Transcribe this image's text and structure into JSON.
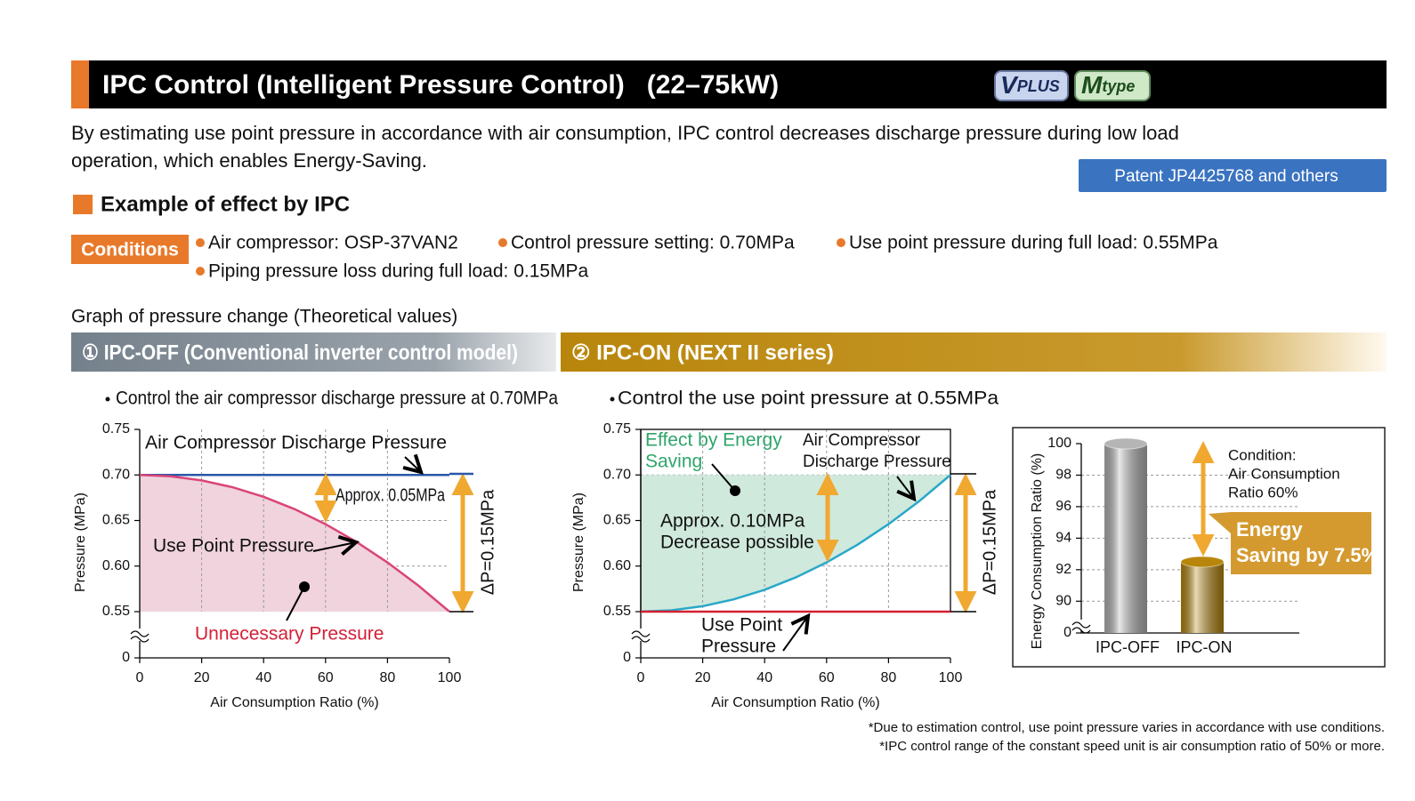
{
  "header": {
    "title": "IPC Control (Intelligent Pressure Control)   (22–75kW)",
    "badges": [
      {
        "main": "V",
        "sub": "PLUS"
      },
      {
        "main": "M",
        "sub": "type"
      }
    ]
  },
  "intro": [
    "By estimating use point pressure in accordance with air consumption, IPC control decreases discharge pressure during low load",
    "operation, which enables Energy-Saving."
  ],
  "patent": "Patent JP4425768 and others",
  "section_title": "Example of effect by IPC",
  "conditions": {
    "label": "Conditions",
    "items": [
      "Air compressor: OSP-37VAN2",
      "Control pressure setting: 0.70MPa",
      "Use point pressure during full load: 0.55MPa",
      "Piping pressure loss during full load: 0.15MPa"
    ]
  },
  "graph_caption": "Graph of pressure change (Theoretical values)",
  "panels": [
    {
      "title": "① IPC-OFF (Conventional inverter control model)",
      "note": "Control the air compressor discharge pressure at 0.70MPa"
    },
    {
      "title": "② IPC-ON (NEXT II series)",
      "note": "Control the use point pressure at 0.55MPa"
    }
  ],
  "chart_data": [
    {
      "type": "line",
      "x": [
        0,
        10,
        20,
        30,
        40,
        50,
        60,
        70,
        80,
        90,
        100
      ],
      "xlim": [
        0,
        100
      ],
      "xticks": [
        0,
        20,
        40,
        60,
        80,
        100
      ],
      "ylim": [
        0,
        0.75
      ],
      "axis_break": [
        0,
        0.55
      ],
      "yticks": [
        0,
        0.55,
        {
          "value": 0.6,
          "label": "0.60"
        },
        0.65,
        {
          "value": 0.7,
          "label": "0.70"
        },
        0.75
      ],
      "xlabel": "Air Consumption Ratio (%)",
      "ylabel": "Pressure (MPa)",
      "grid": true,
      "series": [
        {
          "color": "#2a57a8",
          "values": [
            0.7,
            0.7,
            0.7,
            0.7,
            0.7,
            0.7,
            0.7,
            0.7,
            0.7,
            0.7,
            0.7
          ]
        },
        {
          "color": "#d9457a",
          "values": [
            0.7,
            0.6985,
            0.694,
            0.6865,
            0.676,
            0.6625,
            0.646,
            0.6265,
            0.604,
            0.5785,
            0.55
          ]
        }
      ],
      "fill": {
        "series": 1,
        "to_tick": 1,
        "color": "#f0d3dc"
      },
      "annotations": [
        {
          "text": [
            "Air Compressor Discharge Pressure"
          ]
        },
        {
          "text": [
            "Use Point Pressure"
          ]
        },
        {
          "text": [
            "Approx. 0.05MPa"
          ]
        },
        {
          "text": [
            "ΔP=0.15MPa"
          ]
        },
        {
          "text": [
            "Unnecessary Pressure"
          ],
          "color": "#d42038"
        }
      ]
    },
    {
      "type": "line",
      "x": [
        0,
        10,
        20,
        30,
        40,
        50,
        60,
        70,
        80,
        90,
        100
      ],
      "xlim": [
        0,
        100
      ],
      "xticks": [
        0,
        20,
        40,
        60,
        80,
        100
      ],
      "ylim": [
        0,
        0.75
      ],
      "axis_break": [
        0,
        0.55
      ],
      "yticks": [
        0,
        0.55,
        {
          "value": 0.6,
          "label": "0.60"
        },
        0.65,
        {
          "value": 0.7,
          "label": "0.70"
        },
        0.75
      ],
      "xlabel": "Air Consumption Ratio (%)",
      "ylabel": "Pressure (MPa)",
      "grid": true,
      "series": [
        {
          "color": "#2aa8c8",
          "values": [
            0.55,
            0.5515,
            0.556,
            0.5635,
            0.574,
            0.5875,
            0.604,
            0.6235,
            0.646,
            0.6715,
            0.7
          ]
        },
        {
          "color": "#d42030",
          "values": [
            0.55,
            0.55,
            0.55,
            0.55,
            0.55,
            0.55,
            0.55,
            0.55,
            0.55,
            0.55,
            0.55
          ]
        }
      ],
      "fill": {
        "series": 0,
        "to_tick": 4,
        "color": "#cfe9dc"
      },
      "annotations": [
        {
          "text": [
            "Effect by Energy",
            "Saving"
          ],
          "color": "#2fa56a"
        },
        {
          "text": [
            "Air Compressor",
            "Discharge Pressure"
          ]
        },
        {
          "text": [
            "Approx. 0.10MPa",
            "Decrease possible"
          ]
        },
        {
          "text": [
            "Use Point",
            "Pressure"
          ]
        },
        {
          "text": [
            "ΔP=0.15MPa"
          ]
        }
      ]
    },
    {
      "type": "bar",
      "categories": [
        "IPC-OFF",
        "IPC-ON"
      ],
      "values": [
        100,
        92.5
      ],
      "colors": [
        "#b5b5b5",
        "#b8860b"
      ],
      "ylim": [
        0,
        100
      ],
      "axis_break": [
        0,
        89
      ],
      "yticks": [
        0,
        90,
        92,
        94,
        96,
        98,
        100
      ],
      "ylabel": "Energy Consumption Ratio (%)",
      "grid": true,
      "annotations": [
        {
          "text": [
            "Condition:",
            "Air Consumption",
            "Ratio 60%"
          ]
        },
        {
          "text": [
            "Energy",
            "Saving by 7.5%"
          ],
          "color": "#ffffff"
        }
      ]
    }
  ],
  "footnotes": [
    "*Due to estimation control, use point pressure varies in accordance with use conditions.",
    "*IPC control range of the constant speed unit is air consumption ratio of 50% or more."
  ]
}
